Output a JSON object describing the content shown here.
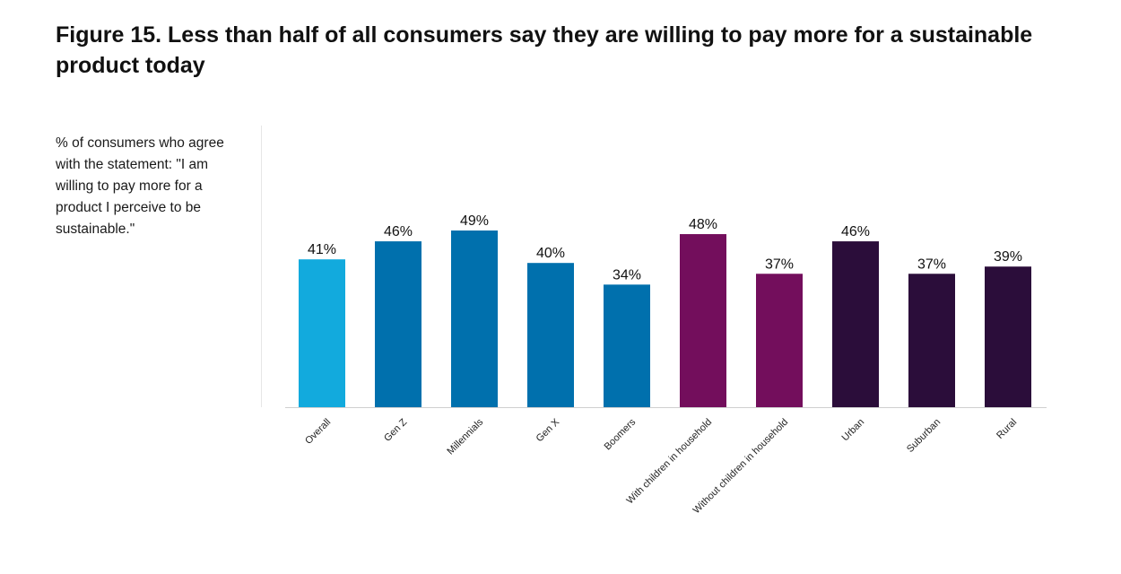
{
  "title": "Figure 15. Less than half of all consumers say they are willing to pay more for a sustainable product today",
  "subtitle": "% of consumers who agree with the statement: \"I am willing to pay more for a product I perceive to be sustainable.\"",
  "chart_data": {
    "type": "bar",
    "title": "Figure 15. Less than half of all consumers say they are willing to pay more for a sustainable product today",
    "subtitle": "% of consumers who agree with the statement: \"I am willing to pay more for a product I perceive to be sustainable.\"",
    "categories": [
      "Overall",
      "Gen Z",
      "Millennials",
      "Gen X",
      "Boomers",
      "With children in household",
      "Without children in household",
      "Urban",
      "Suburban",
      "Rural"
    ],
    "values": [
      41,
      46,
      49,
      40,
      34,
      48,
      37,
      46,
      37,
      39
    ],
    "value_labels": [
      "41%",
      "46%",
      "49%",
      "40%",
      "34%",
      "48%",
      "37%",
      "46%",
      "37%",
      "39%"
    ],
    "bar_colors": [
      "#12aadd",
      "#0070ad",
      "#0070ad",
      "#0070ad",
      "#0070ad",
      "#730e5c",
      "#730e5c",
      "#2b0d3a",
      "#2b0d3a",
      "#2b0d3a"
    ],
    "xlabel": "",
    "ylabel": "",
    "ylim": [
      0,
      100
    ],
    "grid": false,
    "legend": "none"
  }
}
